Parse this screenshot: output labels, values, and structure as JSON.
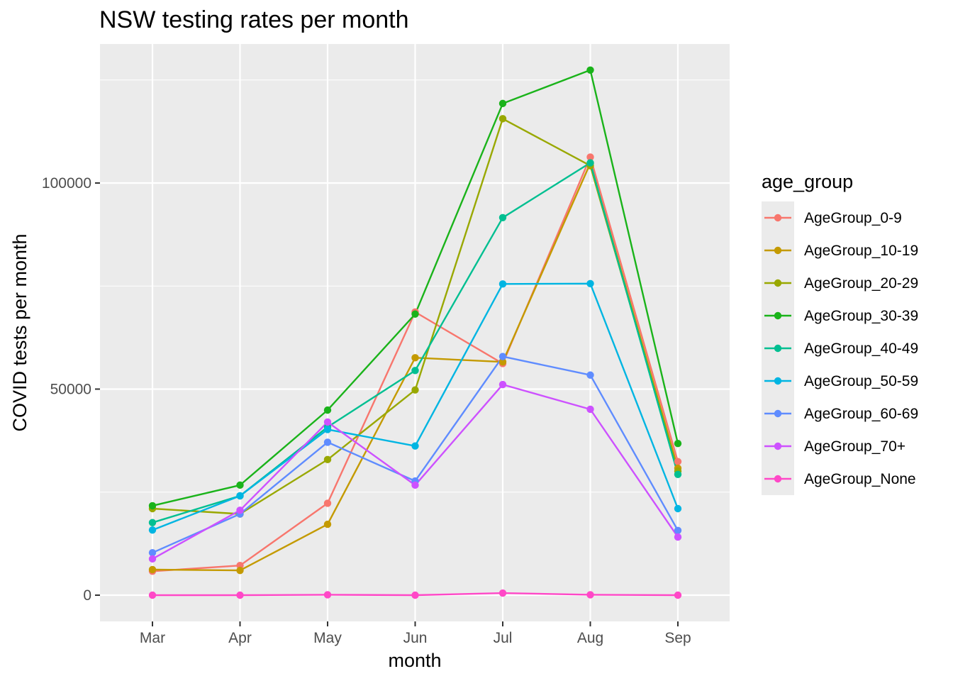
{
  "chart_data": {
    "type": "line",
    "title": "NSW testing rates per month",
    "xlabel": "month",
    "ylabel": "COVID tests per month",
    "categories": [
      "Mar",
      "Apr",
      "May",
      "Jun",
      "Jul",
      "Aug",
      "Sep"
    ],
    "yticks": [
      0,
      50000,
      100000
    ],
    "ytick_labels": [
      "0",
      "50000",
      "100000"
    ],
    "ylim": [
      -6500,
      133000
    ],
    "grid": true,
    "legend_title": "age_group",
    "legend_position": "right",
    "series": [
      {
        "name": "AgeGroup_0-9",
        "color": "#F8766D",
        "values": [
          5800,
          7200,
          22300,
          68700,
          56200,
          106300,
          32400
        ]
      },
      {
        "name": "AgeGroup_10-19",
        "color": "#C49A00",
        "values": [
          6200,
          6000,
          17200,
          57600,
          56600,
          104800,
          30800
        ]
      },
      {
        "name": "AgeGroup_20-29",
        "color": "#99A800",
        "values": [
          21000,
          19700,
          32900,
          49800,
          115600,
          104200,
          30100
        ]
      },
      {
        "name": "AgeGroup_30-39",
        "color": "#1AB31A",
        "values": [
          21700,
          26700,
          44900,
          68200,
          119300,
          127400,
          36800
        ]
      },
      {
        "name": "AgeGroup_40-49",
        "color": "#00BF91",
        "values": [
          17600,
          24100,
          40800,
          54500,
          91600,
          104900,
          29300
        ]
      },
      {
        "name": "AgeGroup_50-59",
        "color": "#00B5E2",
        "values": [
          15800,
          24100,
          40200,
          36200,
          75500,
          75600,
          21000
        ]
      },
      {
        "name": "AgeGroup_60-69",
        "color": "#5F8CFF",
        "values": [
          10300,
          19700,
          37100,
          27700,
          57900,
          53400,
          15700
        ]
      },
      {
        "name": "AgeGroup_70+",
        "color": "#CD51FF",
        "values": [
          8800,
          20600,
          42000,
          26700,
          51100,
          45100,
          14100
        ]
      },
      {
        "name": "AgeGroup_None",
        "color": "#FF48C7",
        "values": [
          0,
          0,
          100,
          0,
          500,
          100,
          0
        ]
      }
    ]
  }
}
